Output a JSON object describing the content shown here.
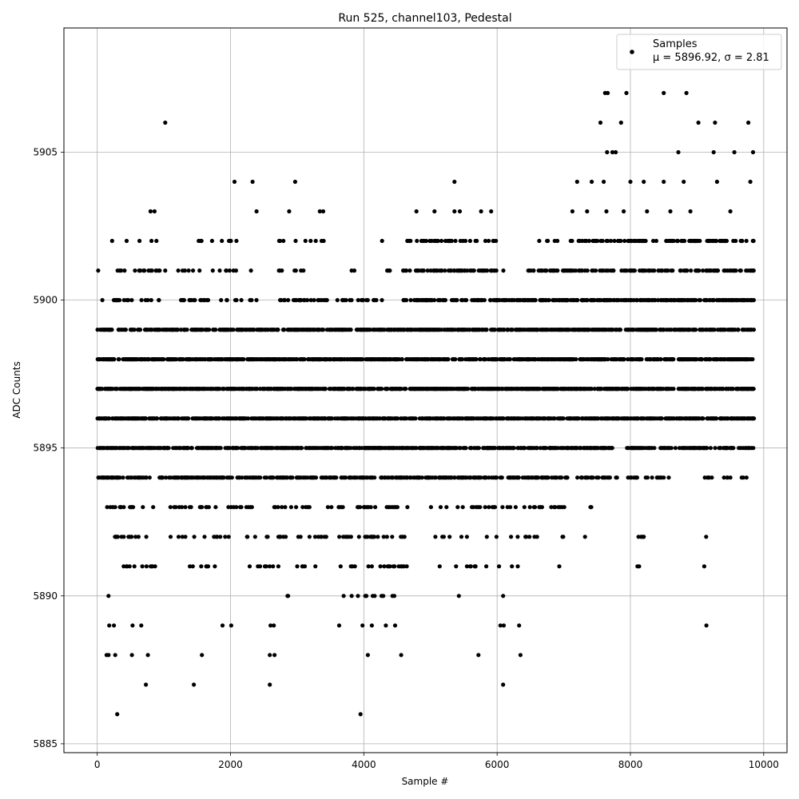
{
  "chart_data": {
    "type": "scatter",
    "title": "Run 525, channel103, Pedestal",
    "xlabel": "Sample #",
    "ylabel": "ADC Counts",
    "xlim": [
      -500,
      10350
    ],
    "ylim": [
      5884.7,
      5909.2
    ],
    "x_ticks": [
      0,
      2000,
      4000,
      6000,
      8000,
      10000
    ],
    "x_tick_labels": [
      "0",
      "2000",
      "4000",
      "6000",
      "8000",
      "10000"
    ],
    "y_ticks": [
      5885,
      5890,
      5895,
      5900,
      5905
    ],
    "y_tick_labels": [
      "5885",
      "5890",
      "5895",
      "5900",
      "5905"
    ],
    "grid": true,
    "legend": {
      "placement": "top-right",
      "entries": [
        "Samples",
        "μ = 5896.92, σ = 2.81"
      ]
    },
    "marker_color": "#000000",
    "series": [
      {
        "name": "Samples",
        "n_samples": 9850,
        "mean": 5896.92,
        "sigma": 2.81,
        "points": [
          [
            300,
            5886
          ],
          [
            3950,
            5886
          ],
          [
            730,
            5887
          ],
          [
            1450,
            5887
          ],
          [
            2590,
            5887
          ],
          [
            6090,
            5887
          ],
          [
            140,
            5888
          ],
          [
            170,
            5888
          ],
          [
            270,
            5888
          ],
          [
            520,
            5888
          ],
          [
            760,
            5888
          ],
          [
            1570,
            5888
          ],
          [
            2590,
            5888
          ],
          [
            2660,
            5888
          ],
          [
            4060,
            5888
          ],
          [
            4560,
            5888
          ],
          [
            5720,
            5888
          ],
          [
            6350,
            5888
          ],
          [
            180,
            5889
          ],
          [
            250,
            5889
          ],
          [
            530,
            5889
          ],
          [
            660,
            5889
          ],
          [
            1880,
            5889
          ],
          [
            2010,
            5889
          ],
          [
            2600,
            5889
          ],
          [
            2650,
            5889
          ],
          [
            3630,
            5889
          ],
          [
            3980,
            5889
          ],
          [
            4120,
            5889
          ],
          [
            4330,
            5889
          ],
          [
            4470,
            5889
          ],
          [
            6050,
            5889
          ],
          [
            6100,
            5889
          ],
          [
            6330,
            5889
          ],
          [
            9140,
            5889
          ],
          [
            1020,
            5906
          ],
          [
            7550,
            5906
          ],
          [
            7860,
            5906
          ],
          [
            9020,
            5906
          ],
          [
            9270,
            5906
          ],
          [
            9770,
            5906
          ],
          [
            7620,
            5907
          ],
          [
            7660,
            5907
          ],
          [
            7940,
            5907
          ],
          [
            8500,
            5907
          ],
          [
            8840,
            5907
          ],
          [
            7650,
            5905
          ],
          [
            7730,
            5905
          ],
          [
            7780,
            5905
          ],
          [
            8720,
            5905
          ],
          [
            9250,
            5905
          ],
          [
            9560,
            5905
          ],
          [
            9840,
            5905
          ],
          [
            2060,
            5904
          ],
          [
            2330,
            5904
          ],
          [
            2970,
            5904
          ],
          [
            5360,
            5904
          ],
          [
            7200,
            5904
          ],
          [
            7420,
            5904
          ],
          [
            7600,
            5904
          ],
          [
            8000,
            5904
          ],
          [
            8200,
            5904
          ],
          [
            8500,
            5904
          ],
          [
            8800,
            5904
          ],
          [
            9300,
            5904
          ],
          [
            9800,
            5904
          ],
          [
            800,
            5903
          ],
          [
            860,
            5903
          ],
          [
            2390,
            5903
          ],
          [
            2880,
            5903
          ],
          [
            3340,
            5903
          ],
          [
            3390,
            5903
          ],
          [
            4790,
            5903
          ],
          [
            5060,
            5903
          ],
          [
            5360,
            5903
          ],
          [
            5440,
            5903
          ],
          [
            5760,
            5903
          ],
          [
            5910,
            5903
          ],
          [
            7130,
            5903
          ],
          [
            7350,
            5903
          ],
          [
            7640,
            5903
          ],
          [
            7900,
            5903
          ],
          [
            8250,
            5903
          ],
          [
            8600,
            5903
          ],
          [
            8900,
            5903
          ],
          [
            9500,
            5903
          ]
        ],
        "bands": [
          {
            "y": 5890,
            "segments": [
              [
                20,
                1300,
                0.0015
              ],
              [
                1650,
                1760,
                0.01
              ],
              [
                2300,
                2900,
                0.008
              ],
              [
                3050,
                3200,
                0.01
              ],
              [
                3550,
                3700,
                0.02
              ],
              [
                3700,
                4550,
                0.03
              ],
              [
                5100,
                6600,
                0.006
              ],
              [
                6850,
                6950,
                0.01
              ]
            ]
          },
          {
            "y": 5891,
            "segments": [
              [
                130,
                870,
                0.05
              ],
              [
                1050,
                1950,
                0.03
              ],
              [
                2280,
                2780,
                0.035
              ],
              [
                2850,
                3400,
                0.02
              ],
              [
                3550,
                4650,
                0.045
              ],
              [
                5100,
                6960,
                0.02
              ],
              [
                8050,
                8200,
                0.02
              ],
              [
                9100,
                9120,
                0.05
              ]
            ]
          },
          {
            "y": 5892,
            "segments": [
              [
                130,
                750,
                0.05
              ],
              [
                1000,
                1570,
                0.02
              ],
              [
                1600,
                1980,
                0.05
              ],
              [
                2230,
                3450,
                0.04
              ],
              [
                3600,
                4620,
                0.05
              ],
              [
                4950,
                6750,
                0.03
              ],
              [
                6980,
                7020,
                0.06
              ],
              [
                7300,
                7430,
                0.02
              ],
              [
                7980,
                8230,
                0.02
              ],
              [
                9030,
                9170,
                0.06
              ]
            ]
          },
          {
            "y": 5893,
            "segments": [
              [
                40,
                850,
                0.05
              ],
              [
                950,
                2350,
                0.05
              ],
              [
                2550,
                3250,
                0.05
              ],
              [
                3450,
                4720,
                0.05
              ],
              [
                4850,
                7020,
                0.05
              ],
              [
                7300,
                7450,
                0.03
              ],
              [
                7550,
                7950,
                0.015
              ],
              [
                8130,
                8180,
                0.05
              ],
              [
                8590,
                8600,
                0.05
              ],
              [
                8900,
                8910,
                0.05
              ],
              [
                9110,
                9120,
                0.05
              ]
            ]
          },
          {
            "y": 5894,
            "segments": [
              [
                0,
                7050,
                0.15
              ],
              [
                7200,
                7800,
                0.1
              ],
              [
                7950,
                8600,
                0.08
              ],
              [
                9080,
                9220,
                0.1
              ],
              [
                9400,
                9500,
                0.1
              ],
              [
                9600,
                9750,
                0.05
              ]
            ]
          },
          {
            "y": 5895,
            "segments": [
              [
                0,
                7100,
                0.2
              ],
              [
                7100,
                7750,
                0.2
              ],
              [
                7950,
                9850,
                0.15
              ]
            ]
          },
          {
            "y": 5896,
            "segments": [
              [
                0,
                9850,
                0.22
              ]
            ]
          },
          {
            "y": 5897,
            "segments": [
              [
                0,
                9850,
                0.22
              ]
            ]
          },
          {
            "y": 5898,
            "segments": [
              [
                0,
                9850,
                0.2
              ]
            ]
          },
          {
            "y": 5899,
            "segments": [
              [
                0,
                9850,
                0.18
              ]
            ]
          },
          {
            "y": 5900,
            "segments": [
              [
                50,
                2450,
                0.06
              ],
              [
                2700,
                4200,
                0.07
              ],
              [
                4250,
                4500,
                0.04
              ],
              [
                4550,
                9850,
                0.15
              ]
            ]
          },
          {
            "y": 5901,
            "segments": [
              [
                0,
                1100,
                0.04
              ],
              [
                1100,
                2400,
                0.035
              ],
              [
                2700,
                3300,
                0.04
              ],
              [
                3700,
                3950,
                0.02
              ],
              [
                4350,
                6100,
                0.1
              ],
              [
                6450,
                9850,
                0.11
              ]
            ]
          },
          {
            "y": 5902,
            "segments": [
              [
                50,
                1100,
                0.02
              ],
              [
                1300,
                2450,
                0.03
              ],
              [
                2700,
                3500,
                0.03
              ],
              [
                3950,
                4300,
                0.015
              ],
              [
                4650,
                6050,
                0.07
              ],
              [
                6500,
                7100,
                0.035
              ],
              [
                7100,
                9850,
                0.1
              ]
            ]
          }
        ]
      }
    ]
  }
}
